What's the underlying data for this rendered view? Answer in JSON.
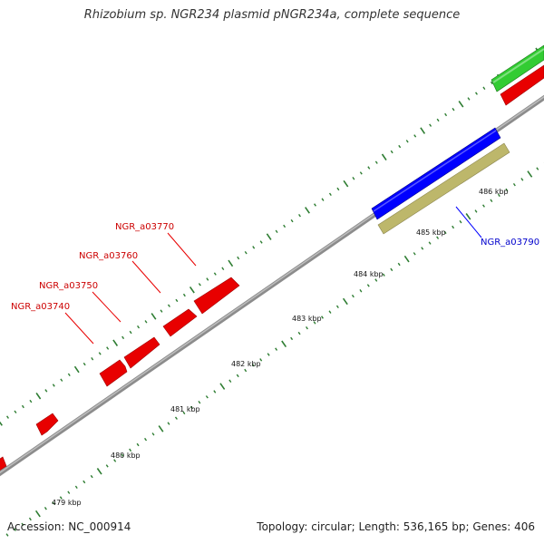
{
  "title": "Rhizobium sp. NGR234 plasmid pNGR234a, complete sequence",
  "footer": {
    "accession": "Accession: NC_000914",
    "summary": "Topology: circular; Length: 536,165 bp; Genes: 406"
  },
  "colors": {
    "backbone": "#8c8c8c",
    "tick": "#2e7d32",
    "gene_red": "#e80000",
    "gene_red_label": "#cc0000",
    "gene_blue": "#0000ff",
    "gene_green": "#33cc33",
    "gene_khaki": "#bdb76b"
  },
  "scale": {
    "unit": "kbp",
    "tick_labels": [
      {
        "kbp": 479,
        "label": "479 kbp"
      },
      {
        "kbp": 480,
        "label": "480 kbp"
      },
      {
        "kbp": 481,
        "label": "481 kbp"
      },
      {
        "kbp": 482,
        "label": "482 kbp"
      },
      {
        "kbp": 483,
        "label": "483 kbp"
      },
      {
        "kbp": 484,
        "label": "484 kbp"
      },
      {
        "kbp": 485,
        "label": "485 kbp"
      },
      {
        "kbp": 486,
        "label": "486 kbp"
      }
    ]
  },
  "gene_labels": [
    {
      "text": "NGR_a03740",
      "color": "#cc0000"
    },
    {
      "text": "NGR_a03750",
      "color": "#cc0000"
    },
    {
      "text": "NGR_a03760",
      "color": "#cc0000"
    },
    {
      "text": "NGR_a03770",
      "color": "#cc0000"
    },
    {
      "text": "NGR_a03790",
      "color": "#0000cc"
    }
  ]
}
